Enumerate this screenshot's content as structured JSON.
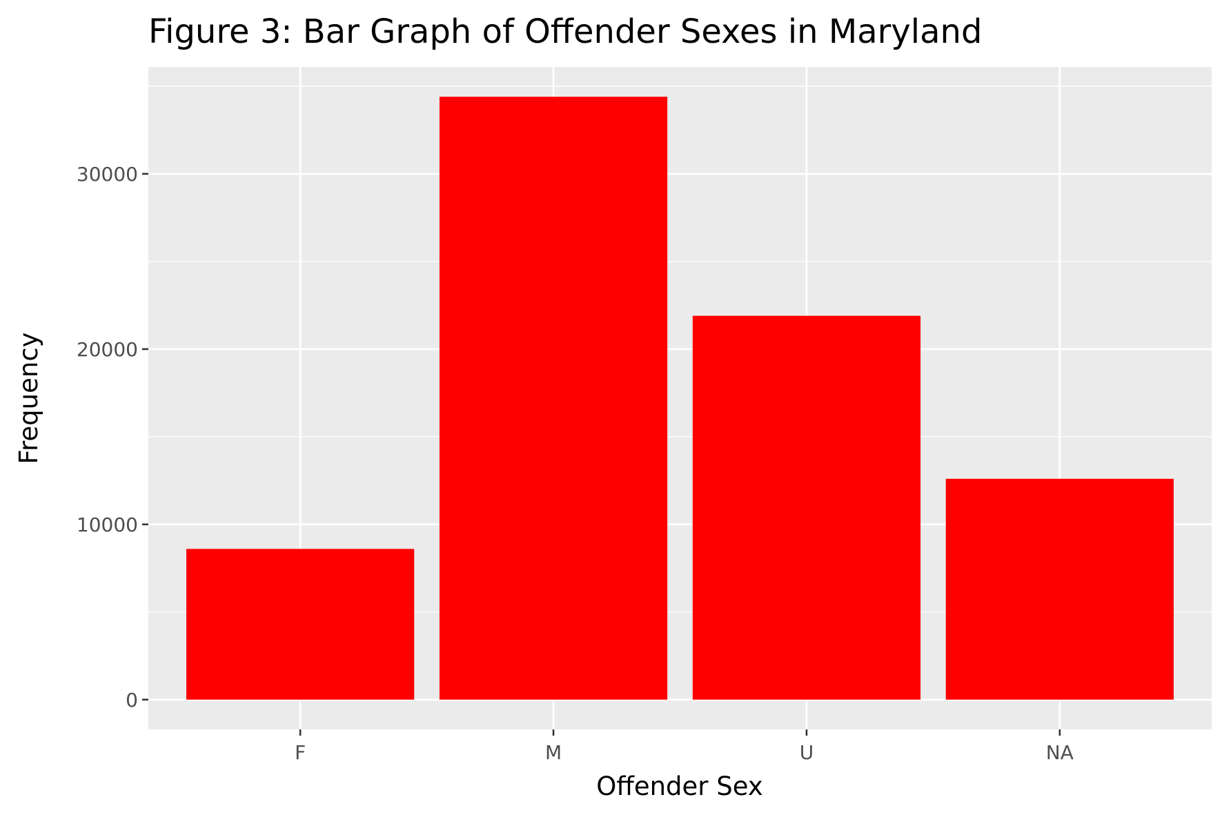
{
  "chart_data": {
    "type": "bar",
    "title": "Figure 3: Bar Graph of Offender Sexes in Maryland",
    "xlabel": "Offender Sex",
    "ylabel": "Frequency",
    "categories": [
      "F",
      "M",
      "U",
      "NA"
    ],
    "values": [
      8600,
      34400,
      21900,
      12600
    ],
    "ylim": [
      -1700,
      36100
    ],
    "yticks": [
      0,
      10000,
      20000,
      30000
    ],
    "ytick_labels": [
      "0",
      "10000",
      "20000",
      "30000"
    ],
    "grid": true,
    "legend": "none",
    "colors": {
      "bar": "#ff0000",
      "panel_background": "#ebebeb",
      "grid": "#ffffff",
      "tick_label": "#4d4d4d",
      "text": "#000000"
    }
  }
}
